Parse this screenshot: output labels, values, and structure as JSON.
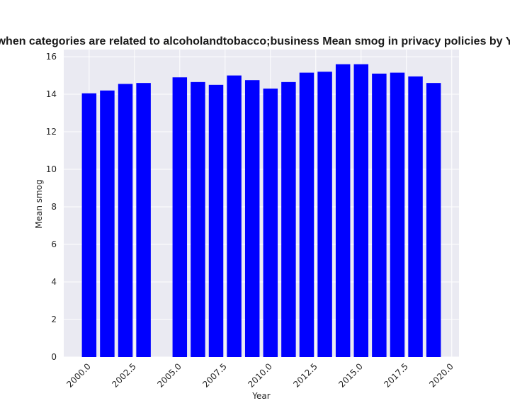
{
  "chart_data": {
    "type": "bar",
    "title": "when categories are related to alcoholandtobacco;business Mean smog in privacy policies by Y",
    "xlabel": "Year",
    "ylabel": "Mean smog",
    "x": [
      2000,
      2001,
      2002,
      2003,
      2005,
      2006,
      2007,
      2008,
      2009,
      2010,
      2011,
      2012,
      2013,
      2014,
      2015,
      2016,
      2017,
      2018,
      2019
    ],
    "values": [
      14.05,
      14.2,
      14.55,
      14.6,
      14.9,
      14.65,
      14.5,
      15.0,
      14.75,
      14.3,
      14.65,
      15.15,
      15.2,
      15.6,
      15.6,
      15.1,
      15.15,
      14.95,
      14.6
    ],
    "xlim": [
      1998.6,
      2020.4
    ],
    "ylim": [
      0,
      16.38
    ],
    "xticks": [
      "2000.0",
      "2002.5",
      "2005.0",
      "2007.5",
      "2010.0",
      "2012.5",
      "2015.0",
      "2017.5",
      "2020.0"
    ],
    "xtick_values": [
      2000,
      2002.5,
      2005,
      2007.5,
      2010,
      2012.5,
      2015,
      2017.5,
      2020
    ],
    "yticks": [
      "0",
      "2",
      "4",
      "6",
      "8",
      "10",
      "12",
      "14",
      "16"
    ],
    "ytick_values": [
      0,
      2,
      4,
      6,
      8,
      10,
      12,
      14,
      16
    ],
    "bar_width_years": 0.8,
    "grid": true,
    "colors": {
      "bar": "#0000ff",
      "plot_bg": "#eaeaf2",
      "grid": "#ffffff"
    }
  }
}
